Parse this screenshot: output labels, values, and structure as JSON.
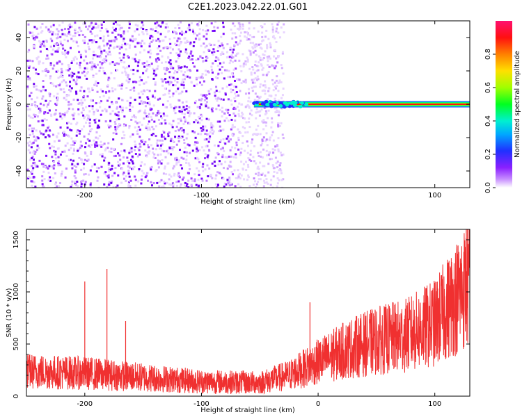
{
  "title": "C2E1.2023.042.22.01.G01",
  "chart_data": [
    {
      "type": "heatmap",
      "xlabel": "Height of straight line (km)",
      "ylabel": "Frequency (Hz)",
      "xlim": [
        -250,
        130
      ],
      "ylim": [
        -50,
        50
      ],
      "xticks": [
        -200,
        -100,
        0,
        100
      ],
      "yticks": [
        -40,
        -20,
        0,
        20,
        40
      ],
      "regions": [
        {
          "x_range": [
            -250,
            -55
          ],
          "description": "scattered noise",
          "y_range": [
            -50,
            50
          ]
        },
        {
          "x_range": [
            -55,
            130
          ],
          "description": "carrier line",
          "y_value": 0
        }
      ],
      "colorbar": {
        "label": "Normalized spectral amplitude",
        "range": [
          0.0,
          1.0
        ],
        "ticks": [
          0.0,
          0.2,
          0.4,
          0.6,
          0.8
        ]
      }
    },
    {
      "type": "line",
      "xlabel": "Height of straight line (km)",
      "ylabel": "SNR (10 * v/v)",
      "xlim": [
        -250,
        130
      ],
      "ylim": [
        0,
        1600
      ],
      "xticks": [
        -200,
        -100,
        0,
        100
      ],
      "yticks": [
        0,
        500,
        1000,
        1500
      ],
      "color": "#f03030",
      "trend": {
        "x": [
          -250,
          -200,
          -150,
          -100,
          -50,
          -25,
          0,
          25,
          50,
          75,
          100,
          130
        ],
        "y": [
          240,
          220,
          180,
          140,
          130,
          200,
          330,
          450,
          530,
          580,
          700,
          1100
        ]
      },
      "spikes": [
        {
          "x": -200,
          "y": 1100
        },
        {
          "x": -181,
          "y": 1220
        },
        {
          "x": -165,
          "y": 720
        },
        {
          "x": -7,
          "y": 900
        },
        {
          "x": 127,
          "y": 1600
        }
      ]
    }
  ]
}
